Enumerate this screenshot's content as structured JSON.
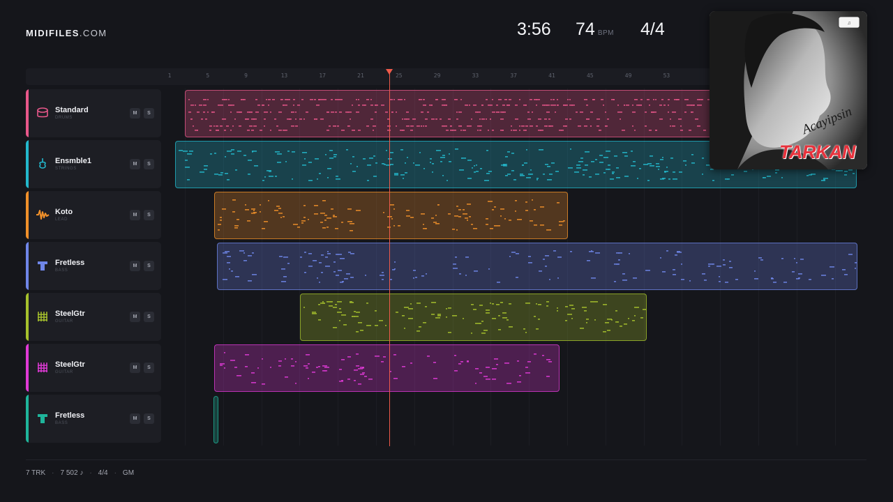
{
  "brand": {
    "name": "MIDIFILES",
    "suffix": ".COM"
  },
  "header": {
    "duration": "3:56",
    "tempo": "74",
    "tempo_unit": "BPM",
    "time_signature": "4/4"
  },
  "ruler": {
    "bars": [
      "1",
      "5",
      "9",
      "13",
      "17",
      "21",
      "25",
      "29",
      "33",
      "37",
      "41",
      "45",
      "49",
      "53"
    ]
  },
  "playhead": {
    "bar": 24.5
  },
  "tracks": [
    {
      "name": "Standard",
      "category": "DRUMS",
      "color": "#e8578a",
      "icon": "drum-icon",
      "mute": "M",
      "solo": "S"
    },
    {
      "name": "Ensmble1",
      "category": "STRINGS",
      "color": "#23b8cc",
      "icon": "violin-icon",
      "mute": "M",
      "solo": "S"
    },
    {
      "name": "Koto",
      "category": "LEAD",
      "color": "#f0902a",
      "icon": "waveform-icon",
      "mute": "M",
      "solo": "S"
    },
    {
      "name": "Fretless",
      "category": "BASS",
      "color": "#6f86e8",
      "icon": "bass-icon",
      "mute": "M",
      "solo": "S"
    },
    {
      "name": "SteelGtr",
      "category": "GUITAR",
      "color": "#a6c12c",
      "icon": "guitar-grid-icon",
      "mute": "M",
      "solo": "S"
    },
    {
      "name": "SteelGtr",
      "category": "GUITAR",
      "color": "#e03ad6",
      "icon": "guitar-grid-icon",
      "mute": "M",
      "solo": "S"
    },
    {
      "name": "Fretless",
      "category": "BASS",
      "color": "#1fb59b",
      "icon": "bass-icon",
      "mute": "M",
      "solo": "S"
    }
  ],
  "album": {
    "artist": "TARKAN",
    "title": "Acayipsin"
  },
  "footer": {
    "tracks": "7 TRK",
    "notes": "7 502 ♪",
    "time_signature": "4/4",
    "standard": "GM"
  }
}
